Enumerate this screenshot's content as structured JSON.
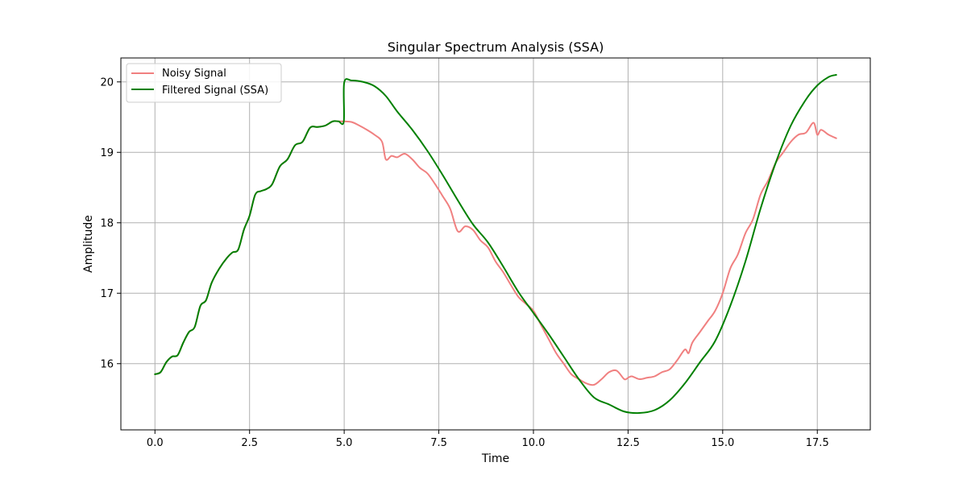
{
  "chart_data": {
    "type": "line",
    "title": "Singular Spectrum Analysis (SSA)",
    "xlabel": "Time",
    "ylabel": "Amplitude",
    "xlim": [
      -0.9,
      18.9
    ],
    "ylim": [
      15.06,
      20.34
    ],
    "xticks": [
      0.0,
      2.5,
      5.0,
      7.5,
      10.0,
      12.5,
      15.0,
      17.5
    ],
    "xtick_labels": [
      "0.0",
      "2.5",
      "5.0",
      "7.5",
      "10.0",
      "12.5",
      "15.0",
      "17.5"
    ],
    "yticks": [
      16,
      17,
      18,
      19,
      20
    ],
    "ytick_labels": [
      "16",
      "17",
      "18",
      "19",
      "20"
    ],
    "grid": true,
    "legend_position": "top-left",
    "series": [
      {
        "name": "Noisy Signal",
        "color": "#f08080",
        "x": [
          0.0,
          0.15,
          0.3,
          0.45,
          0.6,
          0.75,
          0.9,
          1.05,
          1.2,
          1.35,
          1.5,
          1.7,
          1.9,
          2.05,
          2.2,
          2.35,
          2.5,
          2.65,
          2.8,
          2.95,
          3.1,
          3.3,
          3.5,
          3.7,
          3.9,
          4.1,
          4.3,
          4.5,
          4.7,
          4.85,
          5.0,
          5.2,
          5.4,
          5.6,
          5.8,
          6.0,
          6.1,
          6.25,
          6.4,
          6.6,
          6.8,
          7.0,
          7.2,
          7.4,
          7.6,
          7.8,
          8.0,
          8.2,
          8.4,
          8.6,
          8.8,
          9.0,
          9.2,
          9.4,
          9.6,
          9.8,
          10.0,
          10.2,
          10.4,
          10.6,
          10.8,
          11.0,
          11.2,
          11.4,
          11.6,
          11.8,
          12.0,
          12.2,
          12.4,
          12.5,
          12.6,
          12.8,
          13.0,
          13.2,
          13.4,
          13.6,
          13.8,
          14.0,
          14.1,
          14.2,
          14.4,
          14.6,
          14.8,
          15.0,
          15.2,
          15.4,
          15.6,
          15.8,
          16.0,
          16.2,
          16.4,
          16.6,
          16.8,
          17.0,
          17.2,
          17.4,
          17.5,
          17.6,
          17.8,
          18.0
        ],
        "values": [
          15.85,
          15.88,
          16.02,
          16.1,
          16.12,
          16.3,
          16.45,
          16.52,
          16.82,
          16.9,
          17.15,
          17.35,
          17.5,
          17.58,
          17.62,
          17.9,
          18.1,
          18.4,
          18.45,
          18.48,
          18.55,
          18.8,
          18.9,
          19.1,
          19.15,
          19.35,
          19.36,
          19.38,
          19.44,
          19.44,
          19.44,
          19.43,
          19.38,
          19.32,
          19.25,
          19.15,
          18.9,
          18.95,
          18.93,
          18.98,
          18.9,
          18.78,
          18.7,
          18.55,
          18.38,
          18.2,
          17.88,
          17.95,
          17.9,
          17.75,
          17.65,
          17.45,
          17.3,
          17.12,
          16.95,
          16.85,
          16.75,
          16.55,
          16.35,
          16.15,
          16.0,
          15.85,
          15.78,
          15.72,
          15.7,
          15.78,
          15.88,
          15.9,
          15.78,
          15.8,
          15.82,
          15.78,
          15.8,
          15.82,
          15.88,
          15.92,
          16.05,
          16.2,
          16.15,
          16.3,
          16.45,
          16.6,
          16.75,
          17.0,
          17.35,
          17.55,
          17.85,
          18.05,
          18.4,
          18.6,
          18.85,
          19.0,
          19.15,
          19.25,
          19.28,
          19.42,
          19.25,
          19.32,
          19.25,
          19.2
        ]
      },
      {
        "name": "Filtered Signal (SSA)",
        "color": "#008000",
        "x": [
          0.0,
          0.15,
          0.3,
          0.45,
          0.6,
          0.75,
          0.9,
          1.05,
          1.2,
          1.35,
          1.5,
          1.7,
          1.9,
          2.05,
          2.2,
          2.35,
          2.5,
          2.65,
          2.8,
          2.95,
          3.1,
          3.3,
          3.5,
          3.7,
          3.9,
          4.1,
          4.3,
          4.5,
          4.7,
          4.85,
          4.99,
          5.0,
          5.2,
          5.5,
          5.8,
          6.1,
          6.4,
          6.8,
          7.2,
          7.6,
          8.0,
          8.4,
          8.8,
          9.2,
          9.6,
          10.0,
          10.4,
          10.8,
          11.2,
          11.6,
          12.0,
          12.4,
          12.8,
          13.2,
          13.6,
          14.0,
          14.4,
          14.8,
          15.2,
          15.6,
          16.0,
          16.4,
          16.8,
          17.2,
          17.5,
          17.8,
          18.0
        ],
        "values": [
          15.85,
          15.88,
          16.02,
          16.1,
          16.12,
          16.3,
          16.45,
          16.52,
          16.82,
          16.9,
          17.15,
          17.35,
          17.5,
          17.58,
          17.62,
          17.9,
          18.1,
          18.4,
          18.45,
          18.48,
          18.55,
          18.8,
          18.9,
          19.1,
          19.15,
          19.35,
          19.36,
          19.38,
          19.44,
          19.44,
          19.44,
          19.99,
          20.02,
          20.0,
          19.94,
          19.8,
          19.58,
          19.32,
          19.02,
          18.68,
          18.32,
          17.98,
          17.72,
          17.38,
          17.02,
          16.72,
          16.42,
          16.1,
          15.78,
          15.52,
          15.42,
          15.32,
          15.3,
          15.34,
          15.48,
          15.72,
          16.02,
          16.32,
          16.82,
          17.45,
          18.2,
          18.85,
          19.38,
          19.75,
          19.95,
          20.07,
          20.1
        ]
      }
    ]
  }
}
